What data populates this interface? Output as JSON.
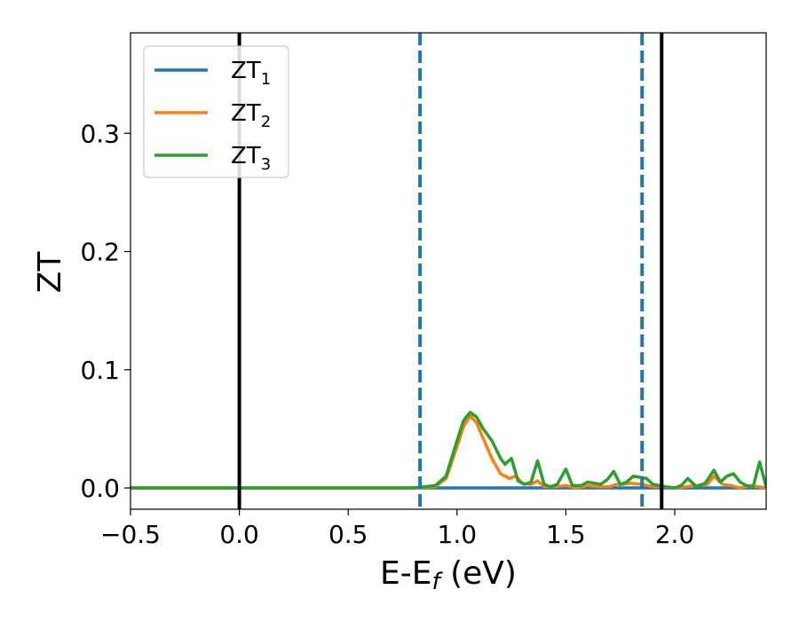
{
  "chart_data": {
    "type": "line",
    "xlabel": {
      "main": "E-E",
      "sub": "f",
      "tail": " (eV)"
    },
    "ylabel": "ZT",
    "xlim": [
      -0.5,
      2.42
    ],
    "ylim": [
      -0.018,
      0.385
    ],
    "xticks": [
      -0.5,
      0.0,
      0.5,
      1.0,
      1.5,
      2.0
    ],
    "xtick_labels": [
      "−0.5",
      "0.0",
      "0.5",
      "1.0",
      "1.5",
      "2.0"
    ],
    "yticks": [
      0.0,
      0.1,
      0.2,
      0.3
    ],
    "ytick_labels": [
      "0.0",
      "0.1",
      "0.2",
      "0.3"
    ],
    "grid": false,
    "legend_position": "top-left",
    "vlines": [
      {
        "x": 0.0,
        "style": "solid",
        "color": "#000000"
      },
      {
        "x": 1.94,
        "style": "solid",
        "color": "#000000"
      },
      {
        "x": 0.83,
        "style": "dashed",
        "color": "#1f77b4"
      },
      {
        "x": 1.85,
        "style": "dashed",
        "color": "#1f77b4"
      }
    ],
    "series": [
      {
        "name": "ZT",
        "sub": "1",
        "color": "#1f77b4",
        "x": [
          -0.5,
          2.42
        ],
        "y": [
          0.0,
          0.0
        ]
      },
      {
        "name": "ZT",
        "sub": "2",
        "color": "#ff7f0e",
        "x": [
          -0.5,
          0.8,
          0.9,
          0.95,
          1.0,
          1.03,
          1.06,
          1.09,
          1.12,
          1.16,
          1.2,
          1.24,
          1.27,
          1.3,
          1.34,
          1.37,
          1.4,
          1.45,
          1.5,
          1.55,
          1.6,
          1.65,
          1.7,
          1.73,
          1.76,
          1.8,
          1.85,
          1.9,
          1.95,
          2.0,
          2.05,
          2.1,
          2.15,
          2.18,
          2.22,
          2.26,
          2.3,
          2.35,
          2.42
        ],
        "y": [
          0.0,
          0.0,
          0.001,
          0.008,
          0.035,
          0.052,
          0.061,
          0.055,
          0.042,
          0.025,
          0.012,
          0.008,
          0.01,
          0.004,
          0.003,
          0.006,
          0.001,
          0.001,
          0.002,
          0.0,
          0.002,
          0.001,
          0.001,
          0.003,
          0.003,
          0.004,
          0.003,
          0.001,
          0.001,
          0.0,
          0.001,
          0.002,
          0.003,
          0.01,
          0.003,
          0.002,
          0.0,
          0.002,
          0.0
        ]
      },
      {
        "name": "ZT",
        "sub": "3",
        "color": "#2ca02c",
        "x": [
          -0.5,
          0.8,
          0.9,
          0.95,
          1.0,
          1.03,
          1.06,
          1.09,
          1.12,
          1.16,
          1.2,
          1.22,
          1.25,
          1.28,
          1.31,
          1.34,
          1.37,
          1.4,
          1.43,
          1.46,
          1.5,
          1.53,
          1.57,
          1.6,
          1.63,
          1.66,
          1.69,
          1.72,
          1.75,
          1.78,
          1.81,
          1.84,
          1.87,
          1.9,
          1.93,
          1.96,
          2.0,
          2.03,
          2.06,
          2.1,
          2.14,
          2.18,
          2.21,
          2.24,
          2.27,
          2.3,
          2.33,
          2.36,
          2.39,
          2.42
        ],
        "y": [
          0.0,
          0.0,
          0.002,
          0.01,
          0.04,
          0.057,
          0.064,
          0.06,
          0.05,
          0.04,
          0.025,
          0.02,
          0.025,
          0.006,
          0.003,
          0.005,
          0.023,
          0.003,
          0.001,
          0.003,
          0.016,
          0.002,
          0.002,
          0.005,
          0.004,
          0.003,
          0.007,
          0.014,
          0.003,
          0.005,
          0.01,
          0.009,
          0.008,
          0.003,
          0.002,
          0.001,
          0.0,
          0.002,
          0.008,
          0.001,
          0.004,
          0.015,
          0.005,
          0.01,
          0.012,
          0.005,
          0.002,
          0.001,
          0.022,
          0.001
        ]
      }
    ]
  }
}
